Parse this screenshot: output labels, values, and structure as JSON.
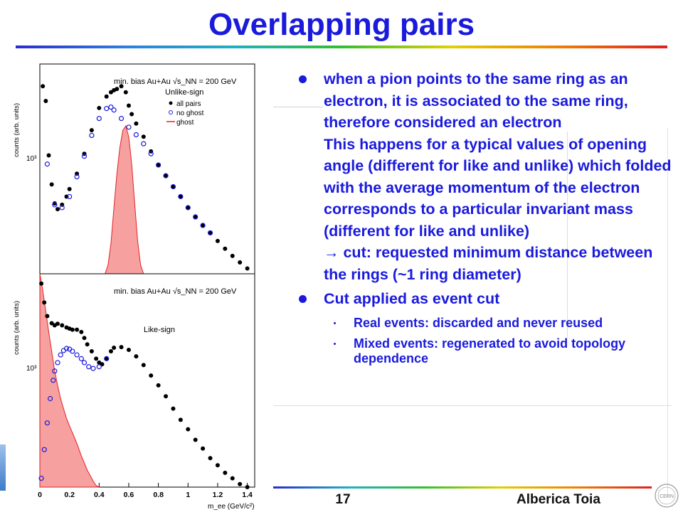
{
  "slide": {
    "title": "Overlapping pairs",
    "page_number": "17",
    "author": "Alberica Toia",
    "logo_text": "CERN",
    "colors": {
      "title": "#1a1adc",
      "all_pairs": "#000000",
      "no_ghost": "#1a1adc",
      "ghost": "#e32222",
      "ghost_fill": "#f6a0a0"
    }
  },
  "bullets": [
    {
      "paragraphs": [
        "when a pion points to the same ring as an electron, it is associated to the same ring, therefore considered an electron",
        "This happens for a typical values of opening angle (different for like and unlike) which folded with the average momentum of the electron corresponds to a particular invariant mass (different for like and unlike)",
        "→ cut: requested minimum distance between the rings (~1 ring diameter)"
      ],
      "sub": []
    },
    {
      "paragraphs": [
        "Cut applied as event cut"
      ],
      "sub": [
        "Real events: discarded and never reused",
        "Mixed events: regenerated to avoid topology dependence"
      ]
    }
  ],
  "chart_data": [
    {
      "type": "scatter",
      "panel": "top",
      "title": "min. bias Au+Au √s_NN = 200 GeV",
      "subtitle": "Unlike-sign",
      "ylabel": "counts (arb. units)",
      "xlim": [
        0,
        1.45
      ],
      "ylim": [
        300,
        3000
      ],
      "log_y": true,
      "ytick_label": "10³",
      "legend_position": "top-right",
      "legend": [
        "all pairs",
        "no ghost",
        "ghost"
      ],
      "series": [
        {
          "name": "all pairs",
          "marker": "filled-circle",
          "x": [
            0.02,
            0.04,
            0.06,
            0.08,
            0.1,
            0.12,
            0.15,
            0.18,
            0.2,
            0.25,
            0.3,
            0.35,
            0.4,
            0.45,
            0.48,
            0.5,
            0.52,
            0.55,
            0.58,
            0.6,
            0.62,
            0.65,
            0.7,
            0.75,
            0.8,
            0.85,
            0.9,
            0.95,
            1.0,
            1.05,
            1.1,
            1.15,
            1.2,
            1.25,
            1.3,
            1.35,
            1.4
          ],
          "y": [
            2350,
            2000,
            1100,
            800,
            650,
            610,
            640,
            700,
            760,
            900,
            1120,
            1450,
            1850,
            2100,
            2200,
            2250,
            2280,
            2350,
            2200,
            1900,
            1730,
            1560,
            1350,
            1150,
            990,
            880,
            780,
            700,
            620,
            560,
            510,
            470,
            430,
            395,
            365,
            340,
            318
          ]
        },
        {
          "name": "no ghost",
          "marker": "open-circle",
          "x": [
            0.05,
            0.1,
            0.15,
            0.2,
            0.25,
            0.3,
            0.35,
            0.4,
            0.45,
            0.48,
            0.5,
            0.55,
            0.6,
            0.65,
            0.7,
            0.75,
            0.8,
            0.85,
            0.9,
            0.95,
            1.0,
            1.05,
            1.1,
            1.15
          ],
          "y": [
            1000,
            640,
            620,
            700,
            870,
            1090,
            1370,
            1650,
            1840,
            1870,
            1810,
            1650,
            1500,
            1380,
            1250,
            1120,
            990,
            880,
            780,
            700,
            620,
            560,
            510,
            470
          ]
        },
        {
          "name": "ghost",
          "marker": "histogram",
          "x": [
            0.44,
            0.46,
            0.48,
            0.5,
            0.52,
            0.54,
            0.56,
            0.58,
            0.6,
            0.62,
            0.64,
            0.66,
            0.68,
            0.7
          ],
          "y": [
            300,
            330,
            420,
            620,
            900,
            1200,
            1450,
            1520,
            1350,
            1000,
            650,
            430,
            330,
            300
          ]
        }
      ]
    },
    {
      "type": "scatter",
      "panel": "bottom",
      "title": "min. bias Au+Au √s_NN = 200 GeV",
      "subtitle": "Like-sign",
      "xlabel": "m_ee (GeV/c²)",
      "ylabel": "counts (arb. units)",
      "xlim": [
        0,
        1.45
      ],
      "ylim": [
        300,
        3000
      ],
      "log_y": true,
      "ytick_label": "10³",
      "x_ticks": [
        0,
        0.2,
        0.4,
        0.6,
        0.8,
        1,
        1.2,
        1.4
      ],
      "x_tick_labels": [
        "0",
        "0.2",
        "0.4",
        "0.6",
        "0.8",
        "1",
        "1.2",
        "1.4"
      ],
      "series": [
        {
          "name": "all pairs",
          "marker": "filled-circle",
          "x": [
            0.01,
            0.03,
            0.05,
            0.08,
            0.1,
            0.12,
            0.15,
            0.18,
            0.2,
            0.22,
            0.25,
            0.28,
            0.3,
            0.32,
            0.35,
            0.38,
            0.4,
            0.42,
            0.45,
            0.48,
            0.5,
            0.55,
            0.6,
            0.65,
            0.7,
            0.75,
            0.8,
            0.85,
            0.9,
            0.95,
            1.0,
            1.05,
            1.1,
            1.15,
            1.2,
            1.25,
            1.3,
            1.35,
            1.4
          ],
          "y": [
            2700,
            2200,
            1900,
            1760,
            1720,
            1750,
            1720,
            1680,
            1660,
            1640,
            1640,
            1600,
            1500,
            1400,
            1300,
            1200,
            1150,
            1130,
            1200,
            1300,
            1350,
            1360,
            1320,
            1230,
            1120,
            1000,
            900,
            800,
            700,
            620,
            560,
            500,
            455,
            410,
            380,
            350,
            330,
            310,
            300
          ]
        },
        {
          "name": "no ghost",
          "marker": "open-circle",
          "x": [
            0.01,
            0.03,
            0.05,
            0.07,
            0.09,
            0.1,
            0.12,
            0.14,
            0.16,
            0.18,
            0.2,
            0.22,
            0.25,
            0.28,
            0.3,
            0.33,
            0.36,
            0.4,
            0.45
          ],
          "y": [
            330,
            450,
            600,
            780,
            950,
            1050,
            1150,
            1250,
            1310,
            1340,
            1330,
            1300,
            1250,
            1200,
            1150,
            1100,
            1080,
            1100,
            1200
          ]
        },
        {
          "name": "ghost",
          "marker": "histogram",
          "x": [
            0.0,
            0.02,
            0.04,
            0.06,
            0.08,
            0.1,
            0.12,
            0.14,
            0.16,
            0.18,
            0.2,
            0.22,
            0.24,
            0.26,
            0.28,
            0.3,
            0.32,
            0.34,
            0.36,
            0.38,
            0.4
          ],
          "y": [
            3000,
            2500,
            2000,
            1600,
            1300,
            1050,
            900,
            780,
            700,
            630,
            580,
            540,
            500,
            460,
            420,
            390,
            360,
            340,
            320,
            305,
            300
          ]
        }
      ]
    }
  ]
}
